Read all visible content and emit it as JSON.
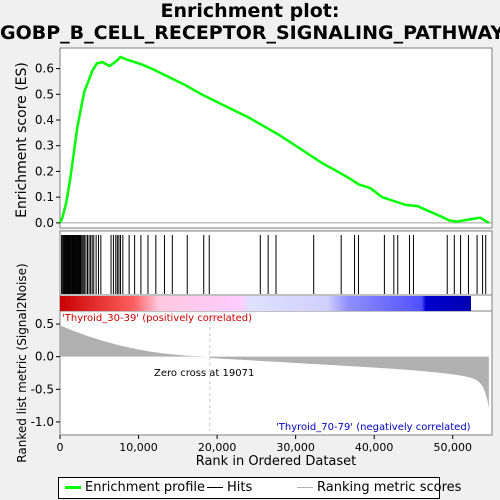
{
  "title_line1": "Enrichment plot:",
  "title_line2": "GOBP_B_CELL_RECEPTOR_SIGNALING_PATHWAY",
  "colors": {
    "es_line": "#00ff00",
    "hits": "#000000",
    "metric_fill": "#b0b0b0",
    "pos_bar": "#ff0000",
    "neg_bar": "#0000ff",
    "zero_cross_line": "#c8c8c8"
  },
  "chart_data": {
    "type": "line",
    "upper_panel": {
      "ylabel": "Enrichment score (ES)",
      "ylim": [
        -0.02,
        0.68
      ],
      "yticks": [
        "0.0",
        "0.1",
        "0.2",
        "0.3",
        "0.4",
        "0.5",
        "0.6"
      ],
      "es_points": [
        [
          0,
          0
        ],
        [
          300,
          0.02
        ],
        [
          800,
          0.08
        ],
        [
          1300,
          0.17
        ],
        [
          1800,
          0.28
        ],
        [
          2200,
          0.37
        ],
        [
          2700,
          0.45
        ],
        [
          3100,
          0.51
        ],
        [
          3600,
          0.55
        ],
        [
          4100,
          0.59
        ],
        [
          4700,
          0.62
        ],
        [
          5400,
          0.625
        ],
        [
          6300,
          0.61
        ],
        [
          7200,
          0.63
        ],
        [
          7700,
          0.645
        ],
        [
          8500,
          0.635
        ],
        [
          9500,
          0.625
        ],
        [
          10500,
          0.615
        ],
        [
          12000,
          0.595
        ],
        [
          14000,
          0.565
        ],
        [
          16000,
          0.535
        ],
        [
          18000,
          0.5
        ],
        [
          20000,
          0.47
        ],
        [
          22000,
          0.44
        ],
        [
          24000,
          0.41
        ],
        [
          26000,
          0.375
        ],
        [
          28000,
          0.34
        ],
        [
          30000,
          0.3
        ],
        [
          32000,
          0.26
        ],
        [
          33500,
          0.23
        ],
        [
          35000,
          0.205
        ],
        [
          37000,
          0.17
        ],
        [
          38000,
          0.15
        ],
        [
          39500,
          0.135
        ],
        [
          41000,
          0.1
        ],
        [
          42500,
          0.085
        ],
        [
          44000,
          0.07
        ],
        [
          45500,
          0.065
        ],
        [
          47000,
          0.045
        ],
        [
          48500,
          0.025
        ],
        [
          49500,
          0.01
        ],
        [
          50500,
          0.005
        ],
        [
          51500,
          0.01
        ],
        [
          52500,
          0.015
        ],
        [
          53500,
          0.02
        ],
        [
          54600,
          0.0
        ]
      ],
      "gene_hits": [
        200,
        300,
        450,
        550,
        650,
        750,
        850,
        950,
        1050,
        1150,
        1250,
        1350,
        1450,
        1550,
        1650,
        1750,
        1850,
        1950,
        2050,
        2150,
        2250,
        2350,
        2450,
        2550,
        2650,
        2800,
        2950,
        3100,
        3300,
        3500,
        3700,
        3900,
        4100,
        4300,
        4600,
        4900,
        5200,
        6500,
        6800,
        7100,
        7300,
        7500,
        7700,
        8000,
        8800,
        9500,
        10300,
        11200,
        12200,
        13300,
        14300,
        16200,
        18300,
        19000,
        25500,
        26500,
        27500,
        32300,
        35800,
        37500,
        38000,
        41300,
        42500,
        43000,
        44500,
        45000,
        49300,
        50200,
        51000,
        52000,
        53100,
        53800,
        54200
      ]
    },
    "lower_panel": {
      "ylabel": "Ranked list metric (Signal2Noise)",
      "xlabel": "Rank in Ordered Dataset",
      "ylim": [
        -1.2,
        0.7
      ],
      "yticks": [
        "0.5",
        "0.0",
        "-0.5",
        "-1.0"
      ],
      "xticks": [
        "0",
        "10,000",
        "20,000",
        "30,000",
        "40,000",
        "50,000"
      ],
      "x_max": 55000,
      "zero_cross_text": "Zero cross at 19071",
      "zero_cross_rank": 19071,
      "pos_label": "'Thyroid_30-39' (positively correlated)",
      "neg_label": "'Thyroid_70-79' (negatively correlated)"
    }
  },
  "legend": {
    "items": [
      "Enrichment profile",
      "Hits",
      "Ranking metric scores"
    ]
  }
}
